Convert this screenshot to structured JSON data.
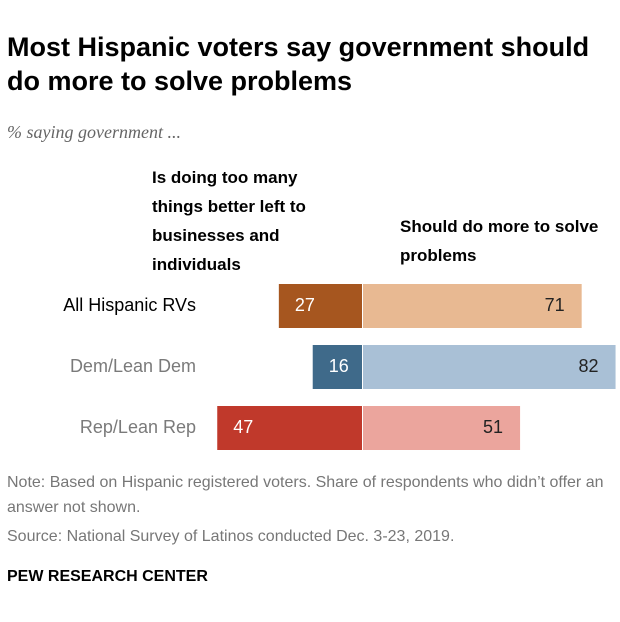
{
  "chart_data": {
    "type": "diverging-bar",
    "title": "Most Hispanic voters say government should do more to solve problems",
    "subtitle": "% saying government ...",
    "categories": [
      "All Hispanic RVs",
      "Dem/Lean Dem",
      "Rep/Lean Rep"
    ],
    "category_colors": [
      "#000000",
      "#7a7a7a",
      "#7a7a7a"
    ],
    "series": [
      {
        "name": "Is doing too many things better left to businesses and individuals",
        "color": [
          "#a6561f",
          "#3f6a8a",
          "#c0392b"
        ],
        "values": [
          27,
          16,
          47
        ]
      },
      {
        "name": "Should do more to solve problems",
        "color": [
          "#e8b992",
          "#a9c0d6",
          "#eba59d"
        ],
        "values": [
          71,
          82,
          51
        ]
      }
    ],
    "note": "Note: Based on Hispanic registered voters. Share of respondents who didn’t offer an answer not shown.",
    "source": "Source: National Survey of Latinos conducted Dec. 3-23, 2019.",
    "credit": "PEW RESEARCH CENTER"
  }
}
